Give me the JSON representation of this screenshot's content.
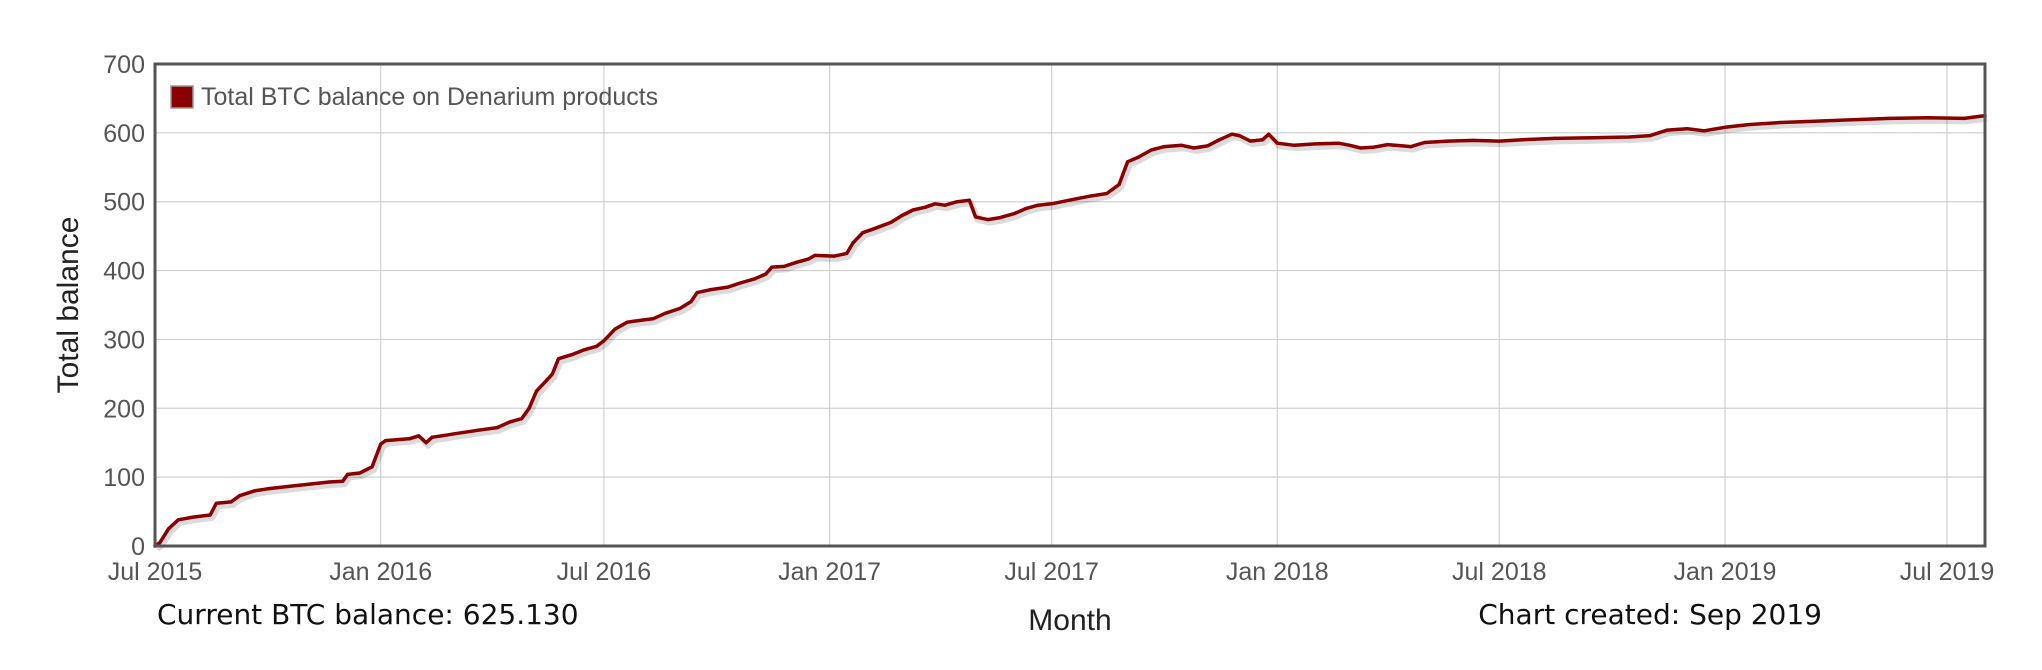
{
  "chart_data": {
    "type": "line",
    "xlabel": "Month",
    "ylabel": "Total balance",
    "ylim": [
      0,
      700
    ],
    "xlim": [
      "2015-07-01",
      "2019-08-01"
    ],
    "yticks": [
      "0",
      "100",
      "200",
      "300",
      "400",
      "500",
      "600",
      "700"
    ],
    "xticks": [
      {
        "date": "2015-07-01",
        "label": "Jul 2015"
      },
      {
        "date": "2016-01-01",
        "label": "Jan 2016"
      },
      {
        "date": "2016-07-01",
        "label": "Jul 2016"
      },
      {
        "date": "2017-01-01",
        "label": "Jan 2017"
      },
      {
        "date": "2017-07-01",
        "label": "Jul 2017"
      },
      {
        "date": "2018-01-01",
        "label": "Jan 2018"
      },
      {
        "date": "2018-07-01",
        "label": "Jul 2018"
      },
      {
        "date": "2019-01-01",
        "label": "Jan 2019"
      },
      {
        "date": "2019-07-01",
        "label": "Jul 2019"
      }
    ],
    "grid": true,
    "legend_position": "top-left",
    "series": [
      {
        "name": "Total BTC balance on Denarium products",
        "color": "#8b0000",
        "points": [
          [
            "2015-07-01",
            0
          ],
          [
            "2015-07-05",
            5
          ],
          [
            "2015-07-12",
            25
          ],
          [
            "2015-07-20",
            38
          ],
          [
            "2015-08-01",
            42
          ],
          [
            "2015-08-15",
            45
          ],
          [
            "2015-08-20",
            62
          ],
          [
            "2015-09-01",
            64
          ],
          [
            "2015-09-08",
            73
          ],
          [
            "2015-09-20",
            80
          ],
          [
            "2015-10-01",
            83
          ],
          [
            "2015-10-20",
            87
          ],
          [
            "2015-11-05",
            90
          ],
          [
            "2015-11-20",
            93
          ],
          [
            "2015-12-01",
            94
          ],
          [
            "2015-12-05",
            104
          ],
          [
            "2015-12-15",
            106
          ],
          [
            "2015-12-25",
            115
          ],
          [
            "2016-01-01",
            148
          ],
          [
            "2016-01-05",
            153
          ],
          [
            "2016-01-25",
            156
          ],
          [
            "2016-02-01",
            160
          ],
          [
            "2016-02-07",
            150
          ],
          [
            "2016-02-12",
            158
          ],
          [
            "2016-02-20",
            160
          ],
          [
            "2016-03-01",
            163
          ],
          [
            "2016-03-20",
            168
          ],
          [
            "2016-04-05",
            172
          ],
          [
            "2016-04-15",
            180
          ],
          [
            "2016-04-25",
            185
          ],
          [
            "2016-05-01",
            200
          ],
          [
            "2016-05-07",
            225
          ],
          [
            "2016-05-15",
            240
          ],
          [
            "2016-05-20",
            250
          ],
          [
            "2016-05-25",
            272
          ],
          [
            "2016-06-05",
            278
          ],
          [
            "2016-06-15",
            285
          ],
          [
            "2016-06-25",
            290
          ],
          [
            "2016-07-01",
            298
          ],
          [
            "2016-07-10",
            315
          ],
          [
            "2016-07-20",
            325
          ],
          [
            "2016-08-01",
            328
          ],
          [
            "2016-08-10",
            330
          ],
          [
            "2016-08-20",
            338
          ],
          [
            "2016-09-01",
            345
          ],
          [
            "2016-09-10",
            355
          ],
          [
            "2016-09-15",
            368
          ],
          [
            "2016-09-25",
            372
          ],
          [
            "2016-10-10",
            376
          ],
          [
            "2016-10-20",
            382
          ],
          [
            "2016-11-01",
            388
          ],
          [
            "2016-11-10",
            395
          ],
          [
            "2016-11-15",
            405
          ],
          [
            "2016-11-25",
            406
          ],
          [
            "2016-12-05",
            412
          ],
          [
            "2016-12-15",
            417
          ],
          [
            "2016-12-20",
            422
          ],
          [
            "2017-01-05",
            421
          ],
          [
            "2017-01-15",
            425
          ],
          [
            "2017-01-20",
            440
          ],
          [
            "2017-01-28",
            455
          ],
          [
            "2017-02-05",
            460
          ],
          [
            "2017-02-20",
            470
          ],
          [
            "2017-03-01",
            480
          ],
          [
            "2017-03-10",
            488
          ],
          [
            "2017-03-20",
            492
          ],
          [
            "2017-03-28",
            497
          ],
          [
            "2017-04-05",
            495
          ],
          [
            "2017-04-15",
            500
          ],
          [
            "2017-04-25",
            502
          ],
          [
            "2017-04-30",
            478
          ],
          [
            "2017-05-10",
            474
          ],
          [
            "2017-05-20",
            477
          ],
          [
            "2017-06-01",
            483
          ],
          [
            "2017-06-10",
            490
          ],
          [
            "2017-06-20",
            495
          ],
          [
            "2017-07-01",
            497
          ],
          [
            "2017-07-15",
            502
          ],
          [
            "2017-08-01",
            508
          ],
          [
            "2017-08-15",
            512
          ],
          [
            "2017-08-25",
            525
          ],
          [
            "2017-09-01",
            558
          ],
          [
            "2017-09-10",
            565
          ],
          [
            "2017-09-20",
            575
          ],
          [
            "2017-10-01",
            580
          ],
          [
            "2017-10-15",
            582
          ],
          [
            "2017-10-25",
            578
          ],
          [
            "2017-11-05",
            581
          ],
          [
            "2017-11-15",
            590
          ],
          [
            "2017-11-25",
            598
          ],
          [
            "2017-12-01",
            596
          ],
          [
            "2017-12-10",
            588
          ],
          [
            "2017-12-20",
            590
          ],
          [
            "2017-12-25",
            598
          ],
          [
            "2018-01-01",
            585
          ],
          [
            "2018-01-15",
            582
          ],
          [
            "2018-02-01",
            584
          ],
          [
            "2018-02-20",
            585
          ],
          [
            "2018-03-01",
            582
          ],
          [
            "2018-03-10",
            578
          ],
          [
            "2018-03-20",
            579
          ],
          [
            "2018-04-01",
            583
          ],
          [
            "2018-04-20",
            580
          ],
          [
            "2018-05-01",
            586
          ],
          [
            "2018-05-20",
            588
          ],
          [
            "2018-06-10",
            589
          ],
          [
            "2018-07-01",
            588
          ],
          [
            "2018-07-20",
            590
          ],
          [
            "2018-08-15",
            592
          ],
          [
            "2018-09-15",
            593
          ],
          [
            "2018-10-15",
            594
          ],
          [
            "2018-11-01",
            596
          ],
          [
            "2018-11-15",
            604
          ],
          [
            "2018-12-01",
            606
          ],
          [
            "2018-12-15",
            603
          ],
          [
            "2019-01-01",
            608
          ],
          [
            "2019-01-20",
            612
          ],
          [
            "2019-02-15",
            615
          ],
          [
            "2019-03-15",
            617
          ],
          [
            "2019-04-15",
            619
          ],
          [
            "2019-05-15",
            621
          ],
          [
            "2019-06-15",
            622
          ],
          [
            "2019-07-15",
            621
          ],
          [
            "2019-08-01",
            625
          ]
        ]
      }
    ]
  },
  "footer": {
    "current_balance": "Current BTC balance: 625.130",
    "xlabel": "Month",
    "created": "Chart created: Sep 2019"
  }
}
